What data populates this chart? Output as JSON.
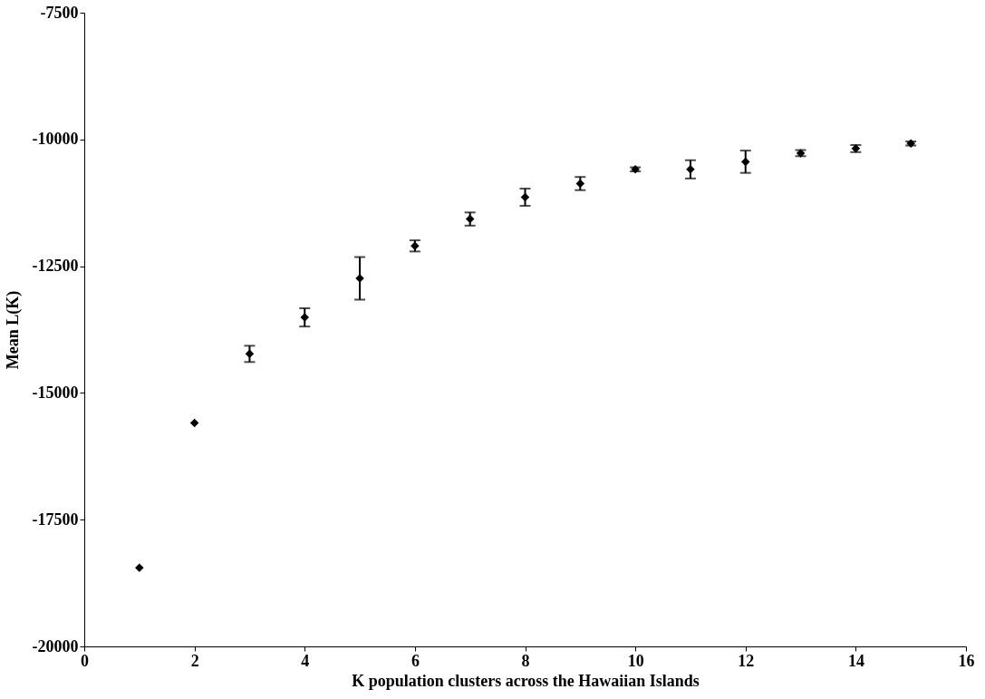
{
  "chart_data": {
    "type": "scatter",
    "xlabel": "K population clusters across the Hawaiian Islands",
    "ylabel": "Mean L(K)",
    "x": [
      1,
      2,
      3,
      4,
      5,
      6,
      7,
      8,
      9,
      10,
      11,
      12,
      13,
      14,
      15
    ],
    "series": [
      {
        "color": "#000000",
        "values": [
          -18450,
          -15590,
          -14230,
          -13510,
          -12740,
          -12100,
          -11570,
          -11140,
          -10870,
          -10590,
          -10590,
          -10440,
          -10270,
          -10180,
          -10080
        ],
        "errors": [
          null,
          null,
          160,
          180,
          420,
          110,
          130,
          170,
          130,
          40,
          180,
          220,
          60,
          70,
          40
        ]
      }
    ],
    "xlim": [
      0,
      16
    ],
    "xticks": [
      0,
      2,
      4,
      6,
      8,
      10,
      12,
      14,
      16
    ],
    "ylim": [
      -20000,
      -7500
    ],
    "yticks": [
      -20000,
      -17500,
      -15000,
      -12500,
      -10000,
      -7500
    ],
    "marker": "diamond",
    "grid": false
  }
}
